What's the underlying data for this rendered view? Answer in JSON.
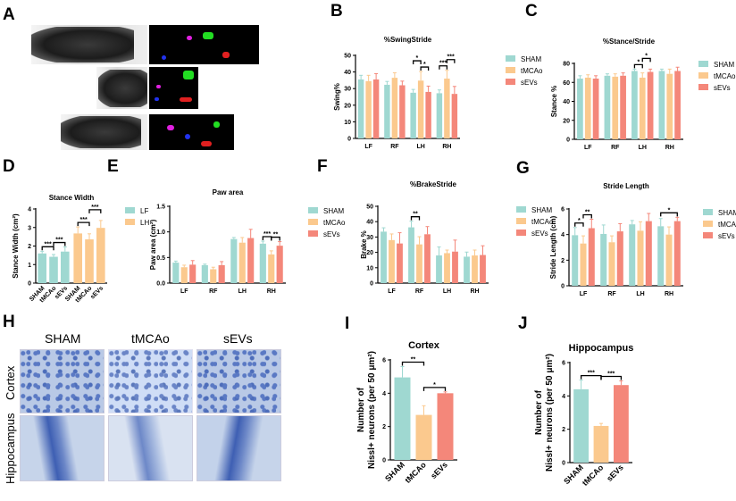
{
  "panel_letters": {
    "A": "A",
    "B": "B",
    "C": "C",
    "D": "D",
    "E": "E",
    "F": "F",
    "G": "G",
    "H": "H",
    "I": "I",
    "J": "J"
  },
  "histology": {
    "columns": [
      "SHAM",
      "tMCAo",
      "sEVs"
    ],
    "rows": [
      "Cortex",
      "Hippocampus"
    ]
  },
  "colors": {
    "SHAM": "#9fd8d1",
    "tMCAo": "#fbc98e",
    "sEVs": "#f4877a",
    "LF": "#9fd8d1",
    "LH": "#fbc98e",
    "axis": "#000000"
  },
  "chart_data": [
    {
      "id": "B",
      "type": "bar",
      "title": "%SwingStride",
      "ylabel": "Swing%",
      "ylim": [
        0,
        50
      ],
      "yticks": [
        0,
        10,
        20,
        30,
        40,
        50
      ],
      "bar_names": [
        "SHAM",
        "tMCAo",
        "sEVs"
      ],
      "color_by": "bar",
      "legend": [
        "SHAM",
        "tMCAo",
        "sEVs"
      ],
      "groups": [
        {
          "label": "LF",
          "values": [
            35.5,
            34.5,
            35.5
          ],
          "errors": [
            2.5,
            3.5,
            3.5
          ]
        },
        {
          "label": "RF",
          "values": [
            32.3,
            36.5,
            32.0
          ],
          "errors": [
            2,
            3,
            2.5
          ]
        },
        {
          "label": "LH",
          "values": [
            27.5,
            34.8,
            28.0
          ],
          "errors": [
            2,
            5.5,
            3.5
          ]
        },
        {
          "label": "RH",
          "values": [
            27.2,
            36.0,
            26.8
          ],
          "errors": [
            2,
            5,
            4.5
          ]
        }
      ],
      "sig": [
        {
          "group": 2,
          "from": 0,
          "to": 1,
          "label": "*",
          "level": 1
        },
        {
          "group": 2,
          "from": 1,
          "to": 2,
          "label": "*",
          "level": 0
        },
        {
          "group": 3,
          "from": 0,
          "to": 1,
          "label": "***",
          "level": 0
        },
        {
          "group": 3,
          "from": 1,
          "to": 2,
          "label": "***",
          "level": 1
        }
      ]
    },
    {
      "id": "C",
      "type": "bar",
      "title": "%Stance/Stride",
      "ylabel": "Stance %",
      "ylim": [
        0,
        80
      ],
      "yticks": [
        0,
        20,
        40,
        60,
        80
      ],
      "bar_names": [
        "SHAM",
        "tMCAo",
        "sEVs"
      ],
      "color_by": "bar",
      "legend": [
        "SHAM",
        "tMCAo",
        "sEVs"
      ],
      "groups": [
        {
          "label": "LF",
          "values": [
            64,
            65,
            64
          ],
          "errors": [
            3,
            3,
            3
          ]
        },
        {
          "label": "RF",
          "values": [
            67,
            66,
            67
          ],
          "errors": [
            2,
            3,
            3
          ]
        },
        {
          "label": "LH",
          "values": [
            72,
            65,
            71
          ],
          "errors": [
            2,
            5,
            3
          ]
        },
        {
          "label": "RH",
          "values": [
            72,
            69,
            72
          ],
          "errors": [
            2,
            5,
            4
          ]
        }
      ],
      "sig": [
        {
          "group": 2,
          "from": 0,
          "to": 1,
          "label": "*",
          "level": 0
        },
        {
          "group": 2,
          "from": 1,
          "to": 2,
          "label": "*",
          "level": 1
        }
      ]
    },
    {
      "id": "D",
      "type": "bar",
      "title": "Stance Width",
      "ylabel": "Stance Width (cm²)",
      "ylim": [
        0,
        4
      ],
      "yticks": [
        0,
        1,
        2,
        3,
        4
      ],
      "bar_names": [
        "SHAM",
        "tMCAo",
        "sEVs"
      ],
      "color_by": "group",
      "legend": [
        "LF",
        "LH"
      ],
      "bar_ticks": true,
      "groups": [
        {
          "label": "LF",
          "values": [
            1.6,
            1.42,
            1.7
          ],
          "errors": [
            0.12,
            0.12,
            0.25
          ]
        },
        {
          "label": "LH",
          "values": [
            2.68,
            2.36,
            2.98
          ],
          "errors": [
            0.35,
            0.3,
            0.4
          ]
        }
      ],
      "sig": [
        {
          "group": 0,
          "from": 0,
          "to": 1,
          "label": "***",
          "level": 0
        },
        {
          "group": 0,
          "from": 1,
          "to": 2,
          "label": "***",
          "level": 0
        },
        {
          "group": 1,
          "from": 0,
          "to": 1,
          "label": "***",
          "level": 0
        },
        {
          "group": 1,
          "from": 1,
          "to": 2,
          "label": "***",
          "level": 1
        }
      ]
    },
    {
      "id": "E",
      "type": "bar",
      "title": "Paw area",
      "ylabel": "Paw area (cm²)",
      "ylim": [
        0,
        1.5
      ],
      "yticks": [
        "0.0",
        "0.5",
        "1.0",
        "1.5"
      ],
      "bar_names": [
        "SHAM",
        "tMCAo",
        "sEVs"
      ],
      "color_by": "bar",
      "legend": [
        "SHAM",
        "tMCAo",
        "sEVs"
      ],
      "groups": [
        {
          "label": "LF",
          "values": [
            0.4,
            0.31,
            0.36
          ],
          "errors": [
            0.03,
            0.04,
            0.08
          ]
        },
        {
          "label": "RF",
          "values": [
            0.35,
            0.27,
            0.35
          ],
          "errors": [
            0.02,
            0.04,
            0.07
          ]
        },
        {
          "label": "LH",
          "values": [
            0.86,
            0.79,
            0.88
          ],
          "errors": [
            0.03,
            0.1,
            0.17
          ]
        },
        {
          "label": "RH",
          "values": [
            0.77,
            0.56,
            0.73
          ],
          "errors": [
            0.05,
            0.07,
            0.08
          ]
        }
      ],
      "sig": [
        {
          "group": 3,
          "from": 0,
          "to": 1,
          "label": "***",
          "level": 0
        },
        {
          "group": 3,
          "from": 1,
          "to": 2,
          "label": "**",
          "level": 0
        }
      ]
    },
    {
      "id": "F",
      "type": "bar",
      "title": "%BrakeStride",
      "ylabel": "Brake %",
      "ylim": [
        0,
        50
      ],
      "yticks": [
        0,
        10,
        20,
        30,
        40,
        50
      ],
      "bar_names": [
        "SHAM",
        "tMCAo",
        "sEVs"
      ],
      "color_by": "bar",
      "legend": [
        "SHAM",
        "tMCAo",
        "sEVs"
      ],
      "groups": [
        {
          "label": "LF",
          "values": [
            33.5,
            28.0,
            25.8
          ],
          "errors": [
            2.5,
            4,
            7
          ]
        },
        {
          "label": "RF",
          "values": [
            36.3,
            25.2,
            31.8
          ],
          "errors": [
            4,
            5,
            5
          ]
        },
        {
          "label": "LH",
          "values": [
            18.0,
            19.5,
            20.5
          ],
          "errors": [
            5.5,
            2,
            7.5
          ]
        },
        {
          "label": "RH",
          "values": [
            17.2,
            18.0,
            18.3
          ],
          "errors": [
            3,
            3.5,
            6
          ]
        }
      ],
      "sig": [
        {
          "group": 1,
          "from": 0,
          "to": 1,
          "label": "**",
          "level": 0
        }
      ]
    },
    {
      "id": "G",
      "type": "bar",
      "title": "Stride Length",
      "ylabel": "Stride Length (cm)",
      "ylim": [
        0,
        6
      ],
      "yticks": [
        0,
        2,
        4,
        6
      ],
      "bar_names": [
        "SHAM",
        "tMCAo",
        "sEVs"
      ],
      "color_by": "bar",
      "legend": [
        "SHAM",
        "tMCAo",
        "sEVs"
      ],
      "groups": [
        {
          "label": "LF",
          "values": [
            3.95,
            3.3,
            4.5
          ],
          "errors": [
            0.6,
            0.6,
            0.7
          ]
        },
        {
          "label": "RF",
          "values": [
            4.05,
            3.4,
            4.25
          ],
          "errors": [
            0.7,
            0.5,
            0.6
          ]
        },
        {
          "label": "LH",
          "values": [
            4.8,
            4.3,
            5.05
          ],
          "errors": [
            0.3,
            0.7,
            0.6
          ]
        },
        {
          "label": "RH",
          "values": [
            4.65,
            4.0,
            5.05
          ],
          "errors": [
            0.6,
            0.6,
            0.3
          ]
        }
      ],
      "sig": [
        {
          "group": 0,
          "from": 0,
          "to": 1,
          "label": "*",
          "level": 0
        },
        {
          "group": 0,
          "from": 1,
          "to": 2,
          "label": "**",
          "level": 0
        },
        {
          "group": 3,
          "from": 0,
          "to": 2,
          "label": "*",
          "level": 0
        }
      ]
    },
    {
      "id": "I",
      "type": "bar",
      "title": "Cortex",
      "ylabel": "Number of",
      "ylabel2": "Nissl+ neurons (per 50 μm²)",
      "ylim": [
        0,
        6
      ],
      "yticks": [
        0,
        2,
        4,
        6
      ],
      "bar_names": [
        "SHAM",
        "tMCAo",
        "sEVs"
      ],
      "color_by": "bar",
      "bar_ticks": true,
      "groups": [
        {
          "label": "",
          "values": [
            4.95,
            2.7,
            4.0
          ],
          "errors": [
            0.65,
            0.55,
            0.08
          ]
        }
      ],
      "sig": [
        {
          "group": 0,
          "from": 0,
          "to": 1,
          "label": "**",
          "level": 0
        },
        {
          "group": 0,
          "from": 1,
          "to": 2,
          "label": "*",
          "level": 0
        }
      ]
    },
    {
      "id": "J",
      "type": "bar",
      "title": "Hippocampus",
      "ylabel": "Number of",
      "ylabel2": "Nissl+ neurons (per 50 μm²)",
      "ylim": [
        0,
        6
      ],
      "yticks": [
        0,
        2,
        4,
        6
      ],
      "bar_names": [
        "SHAM",
        "tMCAo",
        "sEVs"
      ],
      "color_by": "bar",
      "bar_ticks": true,
      "groups": [
        {
          "label": "",
          "values": [
            4.4,
            2.2,
            4.65
          ],
          "errors": [
            0.55,
            0.15,
            0.25
          ]
        }
      ],
      "sig": [
        {
          "group": 0,
          "from": 0,
          "to": 1,
          "label": "***",
          "level": 0
        },
        {
          "group": 0,
          "from": 1,
          "to": 2,
          "label": "***",
          "level": 0
        }
      ]
    }
  ]
}
